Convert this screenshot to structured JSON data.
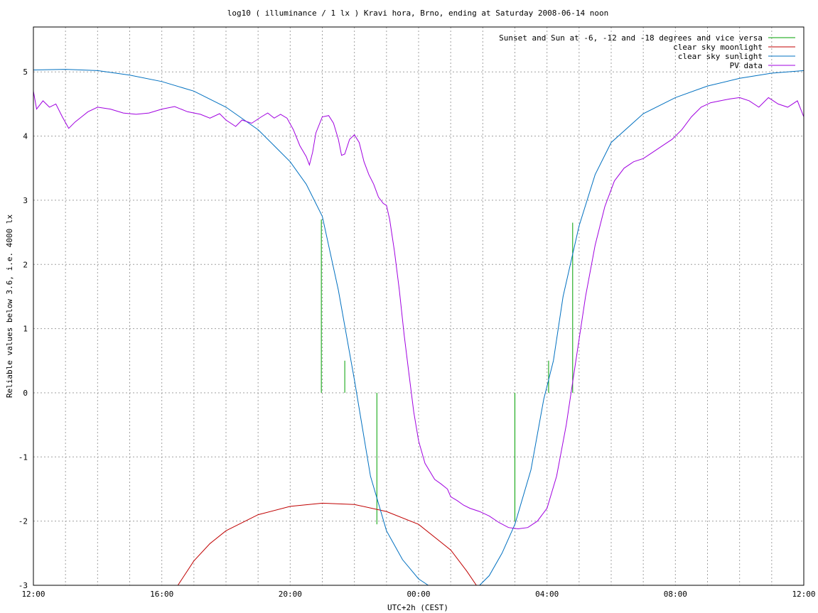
{
  "chart_data": {
    "type": "line",
    "title": "log10 ( illuminance / 1 lx ) Kravi hora, Brno, ending at Saturday 2008-06-14 noon",
    "xlabel": "UTC+2h (CEST)",
    "ylabel": "Reliable values below 3.6, i.e. 4000 lx",
    "x_unit": "hours since 12:00 (Friday 2008-06-13)",
    "xlim": [
      0,
      24
    ],
    "ylim": [
      -3,
      5.7
    ],
    "grid": true,
    "legend_position": "top-right",
    "x_ticks": [
      {
        "value": 0,
        "label": "12:00"
      },
      {
        "value": 4,
        "label": "16:00"
      },
      {
        "value": 8,
        "label": "20:00"
      },
      {
        "value": 12,
        "label": "00:00"
      },
      {
        "value": 16,
        "label": "04:00"
      },
      {
        "value": 20,
        "label": "08:00"
      },
      {
        "value": 24,
        "label": "12:00"
      }
    ],
    "x_minor_grid_step": 1,
    "y_ticks": [
      {
        "value": 5,
        "label": "5"
      },
      {
        "value": 4,
        "label": "4"
      },
      {
        "value": 3,
        "label": "3"
      },
      {
        "value": 2,
        "label": "2"
      },
      {
        "value": 1,
        "label": "1"
      },
      {
        "value": 0,
        "label": "0"
      },
      {
        "value": -1,
        "label": "-1"
      },
      {
        "value": -2,
        "label": "-2"
      },
      {
        "value": -3,
        "label": "-3"
      }
    ],
    "series": [
      {
        "name": "Sunset and Sun at -6, -12 and -18 degrees and vice versa",
        "color": "#00a000",
        "style": "vertical-lines",
        "lines": [
          {
            "x": 8.97,
            "y0": 0,
            "y1": 2.7
          },
          {
            "x": 9.7,
            "y0": 0,
            "y1": 0.5
          },
          {
            "x": 10.7,
            "y0": 0,
            "y1": -2.05
          },
          {
            "x": 15.0,
            "y0": 0,
            "y1": -2.0
          },
          {
            "x": 16.05,
            "y0": 0,
            "y1": 0.5
          },
          {
            "x": 16.8,
            "y0": 0,
            "y1": 2.65
          }
        ]
      },
      {
        "name": "clear sky moonlight",
        "color": "#c00000",
        "style": "line",
        "points": [
          [
            4.5,
            -3.0
          ],
          [
            5.0,
            -2.62
          ],
          [
            5.5,
            -2.35
          ],
          [
            6,
            -2.15
          ],
          [
            7,
            -1.9
          ],
          [
            8,
            -1.77
          ],
          [
            9,
            -1.72
          ],
          [
            10,
            -1.74
          ],
          [
            11,
            -1.85
          ],
          [
            12,
            -2.05
          ],
          [
            13,
            -2.45
          ],
          [
            13.5,
            -2.78
          ],
          [
            13.8,
            -3.0
          ]
        ]
      },
      {
        "name": "clear sky sunlight",
        "color": "#0070c0",
        "style": "line",
        "points": [
          [
            0,
            5.03
          ],
          [
            1,
            5.04
          ],
          [
            2,
            5.02
          ],
          [
            3,
            4.95
          ],
          [
            4,
            4.85
          ],
          [
            5,
            4.7
          ],
          [
            6,
            4.45
          ],
          [
            7,
            4.1
          ],
          [
            7.5,
            3.85
          ],
          [
            8,
            3.6
          ],
          [
            8.5,
            3.25
          ],
          [
            9,
            2.75
          ],
          [
            9.5,
            1.6
          ],
          [
            10,
            0.2
          ],
          [
            10.5,
            -1.3
          ],
          [
            11,
            -2.15
          ],
          [
            11.5,
            -2.6
          ],
          [
            12,
            -2.9
          ],
          [
            12.3,
            -3.0
          ],
          [
            16.2,
            0.5
          ],
          [
            16.5,
            1.5
          ],
          [
            17,
            2.6
          ],
          [
            17.5,
            3.4
          ],
          [
            18,
            3.9
          ],
          [
            19,
            4.35
          ],
          [
            20,
            4.6
          ],
          [
            21,
            4.78
          ],
          [
            22,
            4.9
          ],
          [
            23,
            4.98
          ],
          [
            24,
            5.02
          ]
        ],
        "gap_after_index": 19,
        "reentry_points": [
          [
            13.9,
            -3.0
          ],
          [
            14.2,
            -2.85
          ],
          [
            14.6,
            -2.5
          ],
          [
            15,
            -2.05
          ],
          [
            15.5,
            -1.2
          ],
          [
            15.9,
            -0.1
          ],
          [
            16.2,
            0.5
          ]
        ]
      },
      {
        "name": "PV data",
        "color": "#a000e0",
        "style": "line",
        "points": [
          [
            0,
            4.7
          ],
          [
            0.1,
            4.42
          ],
          [
            0.3,
            4.55
          ],
          [
            0.5,
            4.45
          ],
          [
            0.7,
            4.5
          ],
          [
            0.9,
            4.3
          ],
          [
            1.1,
            4.12
          ],
          [
            1.3,
            4.22
          ],
          [
            1.5,
            4.3
          ],
          [
            1.7,
            4.38
          ],
          [
            2,
            4.45
          ],
          [
            2.4,
            4.42
          ],
          [
            2.8,
            4.36
          ],
          [
            3.2,
            4.34
          ],
          [
            3.6,
            4.36
          ],
          [
            4,
            4.42
          ],
          [
            4.4,
            4.46
          ],
          [
            4.8,
            4.38
          ],
          [
            5.2,
            4.34
          ],
          [
            5.5,
            4.28
          ],
          [
            5.8,
            4.35
          ],
          [
            6.0,
            4.25
          ],
          [
            6.3,
            4.15
          ],
          [
            6.5,
            4.25
          ],
          [
            6.8,
            4.2
          ],
          [
            7.1,
            4.3
          ],
          [
            7.3,
            4.36
          ],
          [
            7.5,
            4.28
          ],
          [
            7.7,
            4.34
          ],
          [
            7.9,
            4.28
          ],
          [
            8.1,
            4.1
          ],
          [
            8.3,
            3.85
          ],
          [
            8.5,
            3.68
          ],
          [
            8.6,
            3.55
          ],
          [
            8.7,
            3.75
          ],
          [
            8.8,
            4.05
          ],
          [
            9.0,
            4.3
          ],
          [
            9.2,
            4.32
          ],
          [
            9.35,
            4.2
          ],
          [
            9.5,
            3.95
          ],
          [
            9.6,
            3.7
          ],
          [
            9.7,
            3.72
          ],
          [
            9.85,
            3.95
          ],
          [
            10.0,
            4.02
          ],
          [
            10.15,
            3.9
          ],
          [
            10.3,
            3.6
          ],
          [
            10.45,
            3.4
          ],
          [
            10.6,
            3.25
          ],
          [
            10.75,
            3.05
          ],
          [
            10.9,
            2.95
          ],
          [
            11.0,
            2.92
          ],
          [
            11.1,
            2.7
          ],
          [
            11.25,
            2.2
          ],
          [
            11.4,
            1.6
          ],
          [
            11.55,
            0.9
          ],
          [
            11.7,
            0.3
          ],
          [
            11.85,
            -0.3
          ],
          [
            12.0,
            -0.75
          ],
          [
            12.2,
            -1.1
          ],
          [
            12.5,
            -1.35
          ],
          [
            12.7,
            -1.42
          ],
          [
            12.9,
            -1.5
          ],
          [
            13.0,
            -1.62
          ],
          [
            13.2,
            -1.68
          ],
          [
            13.4,
            -1.75
          ],
          [
            13.6,
            -1.8
          ],
          [
            13.9,
            -1.85
          ],
          [
            14.2,
            -1.92
          ],
          [
            14.5,
            -2.02
          ],
          [
            14.8,
            -2.1
          ],
          [
            15.1,
            -2.12
          ],
          [
            15.4,
            -2.1
          ],
          [
            15.7,
            -2.0
          ],
          [
            16.0,
            -1.8
          ],
          [
            16.3,
            -1.3
          ],
          [
            16.6,
            -0.5
          ],
          [
            16.9,
            0.5
          ],
          [
            17.2,
            1.5
          ],
          [
            17.5,
            2.3
          ],
          [
            17.8,
            2.9
          ],
          [
            18.1,
            3.3
          ],
          [
            18.4,
            3.5
          ],
          [
            18.7,
            3.6
          ],
          [
            19.0,
            3.65
          ],
          [
            19.3,
            3.75
          ],
          [
            19.6,
            3.85
          ],
          [
            19.9,
            3.95
          ],
          [
            20.2,
            4.1
          ],
          [
            20.5,
            4.3
          ],
          [
            20.8,
            4.45
          ],
          [
            21.1,
            4.52
          ],
          [
            21.4,
            4.55
          ],
          [
            21.7,
            4.58
          ],
          [
            22,
            4.6
          ],
          [
            22.3,
            4.55
          ],
          [
            22.6,
            4.45
          ],
          [
            22.9,
            4.6
          ],
          [
            23.2,
            4.5
          ],
          [
            23.5,
            4.45
          ],
          [
            23.8,
            4.55
          ],
          [
            24,
            4.3
          ]
        ]
      }
    ]
  }
}
